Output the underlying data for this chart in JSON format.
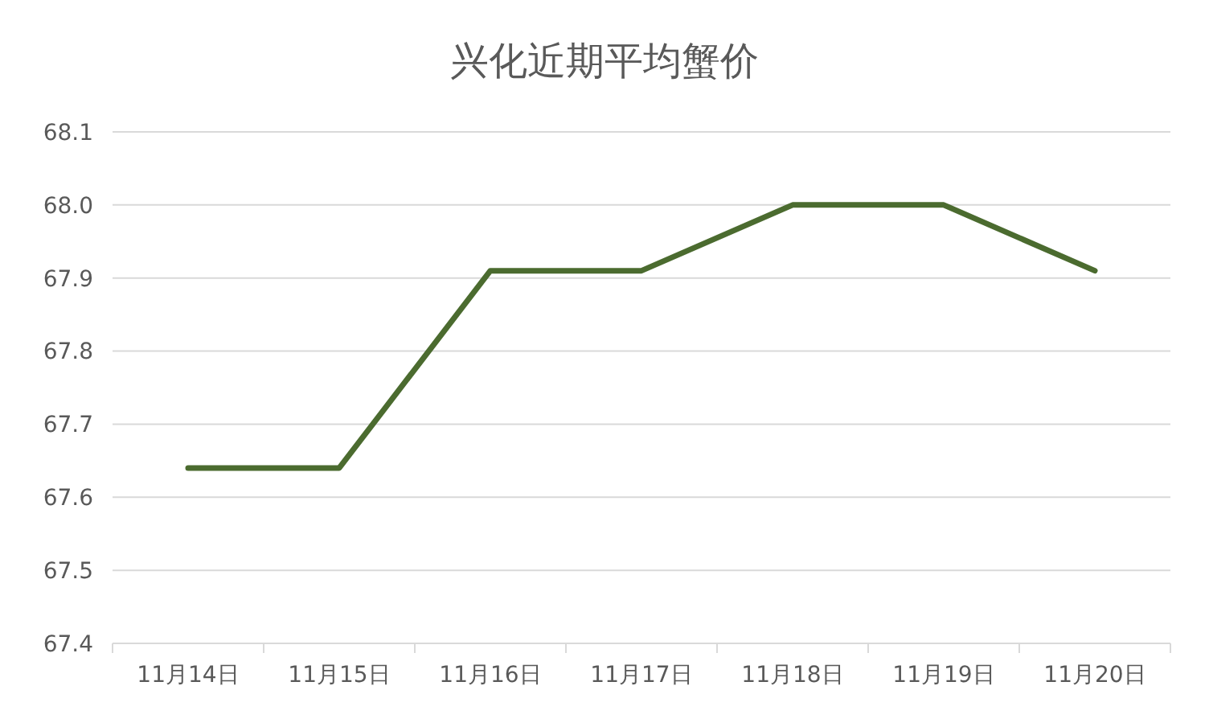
{
  "chart_data": {
    "type": "line",
    "title": "兴化近期平均蟹价",
    "categories": [
      "11月14日",
      "11月15日",
      "11月16日",
      "11月17日",
      "11月18日",
      "11月19日",
      "11月20日"
    ],
    "series": [
      {
        "color": "#4b6b2f",
        "values": [
          67.64,
          67.64,
          67.91,
          67.91,
          68.0,
          68.0,
          67.91
        ]
      }
    ],
    "ylim": [
      67.4,
      68.1
    ],
    "yticks": [
      {
        "value": 67.4,
        "label": "67.4"
      },
      {
        "value": 67.5,
        "label": "67.5"
      },
      {
        "value": 67.6,
        "label": "67.6"
      },
      {
        "value": 67.7,
        "label": "67.7"
      },
      {
        "value": 67.8,
        "label": "67.8"
      },
      {
        "value": 67.9,
        "label": "67.9"
      },
      {
        "value": 68.0,
        "label": "68.0"
      },
      {
        "value": 68.1,
        "label": "68.1"
      }
    ],
    "grid": "y",
    "marker": "none",
    "line_style": "solid"
  }
}
